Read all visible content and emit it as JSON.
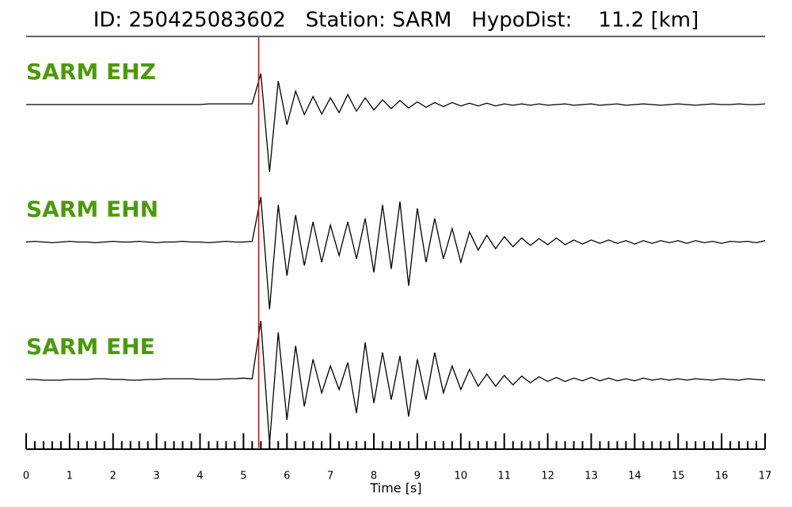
{
  "chart_data": {
    "type": "line",
    "title": "ID: 250425083602   Station: SARM   HypoDist:    11.2 [km]",
    "xlabel": "Time [s]",
    "xlim": [
      0,
      17
    ],
    "xticks": [
      0,
      1,
      2,
      3,
      4,
      5,
      6,
      7,
      8,
      9,
      10,
      11,
      12,
      13,
      14,
      15,
      16,
      17
    ],
    "x_minor_step": 0.2,
    "ylim": [
      -1,
      1
    ],
    "label_color": "#4c9a0c",
    "pick": {
      "value": 5.35,
      "color": "#e00000"
    },
    "x": [
      0,
      0.2,
      0.4,
      0.6,
      0.8,
      1,
      1.2,
      1.4,
      1.6,
      1.8,
      2,
      2.2,
      2.4,
      2.6,
      2.8,
      3,
      3.2,
      3.4,
      3.6,
      3.8,
      4,
      4.2,
      4.4,
      4.6,
      4.8,
      5,
      5.2,
      5.4,
      5.6,
      5.8,
      6,
      6.2,
      6.4,
      6.6,
      6.8,
      7,
      7.2,
      7.4,
      7.6,
      7.8,
      8,
      8.2,
      8.4,
      8.6,
      8.8,
      9,
      9.2,
      9.4,
      9.6,
      9.8,
      10,
      10.2,
      10.4,
      10.6,
      10.8,
      11,
      11.2,
      11.4,
      11.6,
      11.8,
      12,
      12.2,
      12.4,
      12.6,
      12.8,
      13,
      13.2,
      13.4,
      13.6,
      13.8,
      14,
      14.2,
      14.4,
      14.6,
      14.8,
      15,
      15.2,
      15.4,
      15.6,
      15.8,
      16,
      16.2,
      16.4,
      16.6,
      16.8,
      17
    ],
    "series": [
      {
        "name": "SARM EHZ",
        "color": "#000000",
        "values": [
          0,
          0,
          0,
          0,
          0,
          0,
          0,
          0,
          0,
          0,
          0,
          0,
          0,
          0,
          0,
          0,
          0,
          0,
          0,
          0,
          0,
          0.01,
          0.01,
          0.01,
          0.01,
          0.01,
          0.01,
          0.46,
          -1.0,
          0.35,
          -0.3,
          0.2,
          -0.15,
          0.12,
          -0.14,
          0.1,
          -0.12,
          0.15,
          -0.1,
          0.1,
          -0.08,
          0.07,
          -0.06,
          0.06,
          -0.05,
          0.04,
          -0.04,
          0.03,
          -0.03,
          0.03,
          -0.02,
          0.02,
          -0.02,
          0.02,
          -0.02,
          0.01,
          -0.01,
          0.01,
          -0.01,
          0.01,
          -0.01,
          0,
          0.01,
          -0.01,
          0,
          0.01,
          -0.01,
          0,
          0.01,
          -0.01,
          0,
          0.01,
          0,
          -0.01,
          0,
          0.01,
          0,
          -0.01,
          0,
          0.01,
          0,
          0,
          0.01,
          0,
          0,
          0.01
        ]
      },
      {
        "name": "SARM EHN",
        "color": "#000000",
        "values": [
          0,
          0.01,
          0,
          -0.01,
          0,
          0.01,
          0,
          0,
          -0.01,
          0,
          0.01,
          0,
          0,
          0.01,
          0,
          -0.01,
          0,
          0,
          0.01,
          0,
          0,
          -0.01,
          0,
          0.01,
          0,
          0,
          0.01,
          0.67,
          -1.0,
          0.55,
          -0.5,
          0.4,
          -0.35,
          0.3,
          -0.3,
          0.25,
          -0.2,
          0.3,
          -0.25,
          0.35,
          -0.45,
          0.55,
          -0.4,
          0.6,
          -0.65,
          0.5,
          -0.3,
          0.35,
          -0.25,
          0.2,
          -0.3,
          0.15,
          -0.12,
          0.1,
          -0.1,
          0.08,
          -0.07,
          0.06,
          -0.05,
          0.05,
          -0.04,
          0.06,
          -0.04,
          0.03,
          -0.03,
          0.03,
          -0.02,
          0.03,
          -0.02,
          0.02,
          -0.03,
          0.02,
          -0.02,
          0.02,
          -0.01,
          0.02,
          -0.02,
          0.02,
          -0.01,
          0.01,
          -0.02,
          0.01,
          0,
          0.01,
          -0.01,
          0.02
        ]
      },
      {
        "name": "SARM EHE",
        "color": "#000000",
        "values": [
          0,
          0,
          -0.01,
          -0.01,
          -0.01,
          0,
          0,
          0,
          0.01,
          0.01,
          0,
          0,
          -0.01,
          -0.01,
          0,
          0,
          0.01,
          0.01,
          0.01,
          0.01,
          0,
          0,
          0,
          0.01,
          0.01,
          0.02,
          0.01,
          0.87,
          -0.95,
          0.7,
          -0.6,
          0.5,
          -0.4,
          0.3,
          -0.2,
          0.2,
          -0.15,
          0.25,
          -0.5,
          0.55,
          -0.35,
          0.4,
          -0.3,
          0.35,
          -0.55,
          0.3,
          -0.3,
          0.4,
          -0.2,
          0.2,
          -0.15,
          0.15,
          -0.1,
          0.08,
          -0.1,
          0.06,
          -0.08,
          0.05,
          -0.05,
          0.04,
          -0.03,
          0.03,
          -0.03,
          0.02,
          -0.02,
          0.03,
          -0.02,
          0.02,
          -0.02,
          0.01,
          -0.02,
          0.02,
          -0.01,
          0.01,
          -0.01,
          0.01,
          -0.01,
          0.01,
          0,
          -0.01,
          0.01,
          0,
          -0.01,
          0.01,
          0,
          -0.01
        ]
      }
    ]
  }
}
